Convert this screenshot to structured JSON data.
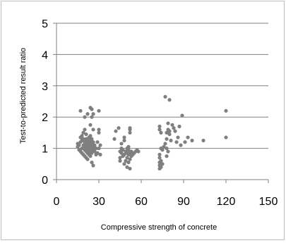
{
  "chart_data": {
    "type": "scatter",
    "title": "",
    "xlabel": "Compressive strength of concrete",
    "ylabel": "Test-to-predicted  result  ratio",
    "xlim": [
      0,
      150
    ],
    "ylim": [
      0,
      5
    ],
    "xticks": [
      0,
      30,
      60,
      90,
      120,
      150
    ],
    "yticks": [
      0,
      1,
      2,
      3,
      4,
      5
    ],
    "grid": {
      "horizontal": true,
      "vertical": false
    },
    "colors": {
      "points": "#7f7f7f",
      "grid": "#808080",
      "axis": "#808080",
      "frame": "#bdbdbd"
    },
    "series": [
      {
        "points": [
          [
            15,
            1.05
          ],
          [
            15,
            1.15
          ],
          [
            16,
            0.95
          ],
          [
            16,
            1.1
          ],
          [
            17,
            1.2
          ],
          [
            17,
            0.9
          ],
          [
            17,
            1.35
          ],
          [
            17,
            2.2
          ],
          [
            18,
            1.0
          ],
          [
            18,
            1.25
          ],
          [
            18,
            0.85
          ],
          [
            18,
            1.4
          ],
          [
            19,
            1.1
          ],
          [
            19,
            0.8
          ],
          [
            19,
            1.3
          ],
          [
            19,
            1.5
          ],
          [
            20,
            0.95
          ],
          [
            20,
            1.05
          ],
          [
            20,
            1.2
          ],
          [
            20,
            0.75
          ],
          [
            20,
            1.6
          ],
          [
            20,
            2.0
          ],
          [
            21,
            1.0
          ],
          [
            21,
            0.9
          ],
          [
            21,
            1.15
          ],
          [
            21,
            1.3
          ],
          [
            21,
            0.7
          ],
          [
            21,
            1.45
          ],
          [
            22,
            1.05
          ],
          [
            22,
            0.85
          ],
          [
            22,
            1.25
          ],
          [
            22,
            0.65
          ],
          [
            22,
            1.1
          ],
          [
            22,
            2.1
          ],
          [
            23,
            0.95
          ],
          [
            23,
            1.2
          ],
          [
            23,
            0.8
          ],
          [
            23,
            1.35
          ],
          [
            23,
            1.0
          ],
          [
            24,
            1.1
          ],
          [
            24,
            0.9
          ],
          [
            24,
            1.25
          ],
          [
            24,
            0.75
          ],
          [
            24,
            1.4
          ],
          [
            24,
            1.75
          ],
          [
            24,
            2.3
          ],
          [
            25,
            1.0
          ],
          [
            25,
            0.85
          ],
          [
            25,
            1.15
          ],
          [
            25,
            0.55
          ],
          [
            25,
            1.3
          ],
          [
            25,
            2.0
          ],
          [
            25,
            2.25
          ],
          [
            26,
            0.95
          ],
          [
            26,
            1.05
          ],
          [
            26,
            1.6
          ],
          [
            26,
            2.1
          ],
          [
            26,
            0.45
          ],
          [
            26,
            1.2
          ],
          [
            27,
            0.9
          ],
          [
            27,
            1.0
          ],
          [
            27,
            1.1
          ],
          [
            28,
            0.8
          ],
          [
            28,
            1.0
          ],
          [
            29,
            1.2
          ],
          [
            29,
            0.85
          ],
          [
            30,
            1.5
          ],
          [
            30,
            1.0
          ],
          [
            30,
            1.6
          ],
          [
            30,
            2.2
          ],
          [
            31,
            1.1
          ],
          [
            31,
            0.8
          ],
          [
            41,
            1.3
          ],
          [
            42,
            1.55
          ],
          [
            44,
            1.65
          ],
          [
            45,
            0.9
          ],
          [
            45,
            0.7
          ],
          [
            45,
            0.6
          ],
          [
            46,
            0.85
          ],
          [
            46,
            1.15
          ],
          [
            46,
            1.0
          ],
          [
            47,
            0.75
          ],
          [
            47,
            0.95
          ],
          [
            48,
            0.8
          ],
          [
            48,
            1.25
          ],
          [
            48,
            1.35
          ],
          [
            48,
            0.5
          ],
          [
            49,
            0.9
          ],
          [
            49,
            0.6
          ],
          [
            50,
            0.85
          ],
          [
            50,
            1.0
          ],
          [
            50,
            0.7
          ],
          [
            50,
            0.4
          ],
          [
            51,
            0.95
          ],
          [
            51,
            0.8
          ],
          [
            51,
            1.05
          ],
          [
            51,
            0.55
          ],
          [
            52,
            0.85
          ],
          [
            52,
            0.65
          ],
          [
            52,
            1.6
          ],
          [
            52,
            1.65
          ],
          [
            52,
            1.5
          ],
          [
            52,
            0.35
          ],
          [
            53,
            0.9
          ],
          [
            53,
            0.75
          ],
          [
            54,
            0.8
          ],
          [
            55,
            0.85
          ],
          [
            56,
            0.9
          ],
          [
            57,
            0.95
          ],
          [
            58,
            0.9
          ],
          [
            73,
            0.35
          ],
          [
            73,
            0.45
          ],
          [
            73,
            0.55
          ],
          [
            73,
            0.7
          ],
          [
            73,
            0.8
          ],
          [
            73,
            1.6
          ],
          [
            73,
            1.7
          ],
          [
            74,
            0.4
          ],
          [
            74,
            0.6
          ],
          [
            74,
            1.0
          ],
          [
            74,
            1.5
          ],
          [
            75,
            0.5
          ],
          [
            75,
            0.95
          ],
          [
            76,
            1.05
          ],
          [
            77,
            1.15
          ],
          [
            77,
            2.65
          ],
          [
            78,
            0.75
          ],
          [
            78,
            1.0
          ],
          [
            78,
            1.3
          ],
          [
            78,
            1.5
          ],
          [
            79,
            0.9
          ],
          [
            79,
            1.6
          ],
          [
            79,
            1.8
          ],
          [
            80,
            1.45
          ],
          [
            80,
            1.55
          ],
          [
            80,
            2.55
          ],
          [
            81,
            1.25
          ],
          [
            82,
            1.75
          ],
          [
            83,
            1.65
          ],
          [
            84,
            1.55
          ],
          [
            85,
            1.2
          ],
          [
            86,
            1.35
          ],
          [
            87,
            1.7
          ],
          [
            88,
            1.1
          ],
          [
            89,
            2.05
          ],
          [
            91,
            1.2
          ],
          [
            93,
            1.35
          ],
          [
            96,
            1.25
          ],
          [
            104,
            1.25
          ],
          [
            120,
            2.2
          ],
          [
            120,
            1.35
          ]
        ]
      }
    ]
  }
}
